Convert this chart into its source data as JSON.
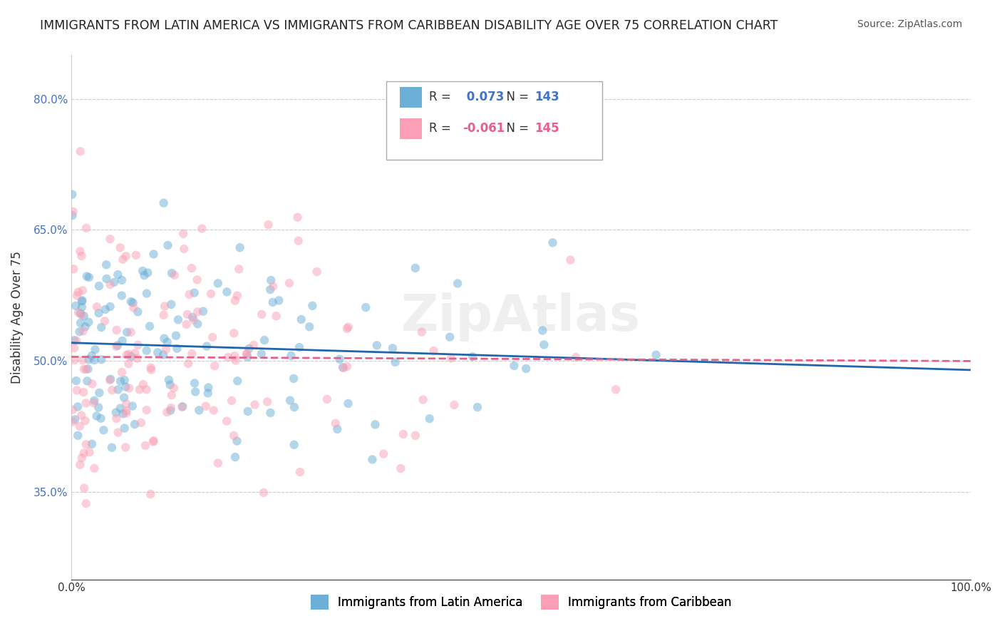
{
  "title": "IMMIGRANTS FROM LATIN AMERICA VS IMMIGRANTS FROM CARIBBEAN DISABILITY AGE OVER 75 CORRELATION CHART",
  "source": "Source: ZipAtlas.com",
  "xlabel": "",
  "ylabel": "Disability Age Over 75",
  "legend_label_1": "Immigrants from Latin America",
  "legend_label_2": "Immigrants from Caribbean",
  "R1": 0.073,
  "N1": 143,
  "R2": -0.061,
  "N2": 145,
  "color_blue": "#6baed6",
  "color_pink": "#fa9fb5",
  "line_color_blue": "#2166ac",
  "line_color_pink": "#e8608a",
  "background_color": "#ffffff",
  "grid_color": "#cccccc",
  "xlim": [
    0.0,
    1.0
  ],
  "ylim": [
    0.25,
    0.85
  ],
  "x_ticks": [
    0.0,
    0.2,
    0.4,
    0.6,
    0.8,
    1.0
  ],
  "x_tick_labels": [
    "0.0%",
    "",
    "",
    "",
    "",
    "100.0%"
  ],
  "y_ticks": [
    0.35,
    0.5,
    0.65,
    0.8
  ],
  "y_tick_labels": [
    "35.0%",
    "50.0%",
    "65.0%",
    "80.0%"
  ],
  "watermark": "ZipAtlas",
  "seed": 42
}
